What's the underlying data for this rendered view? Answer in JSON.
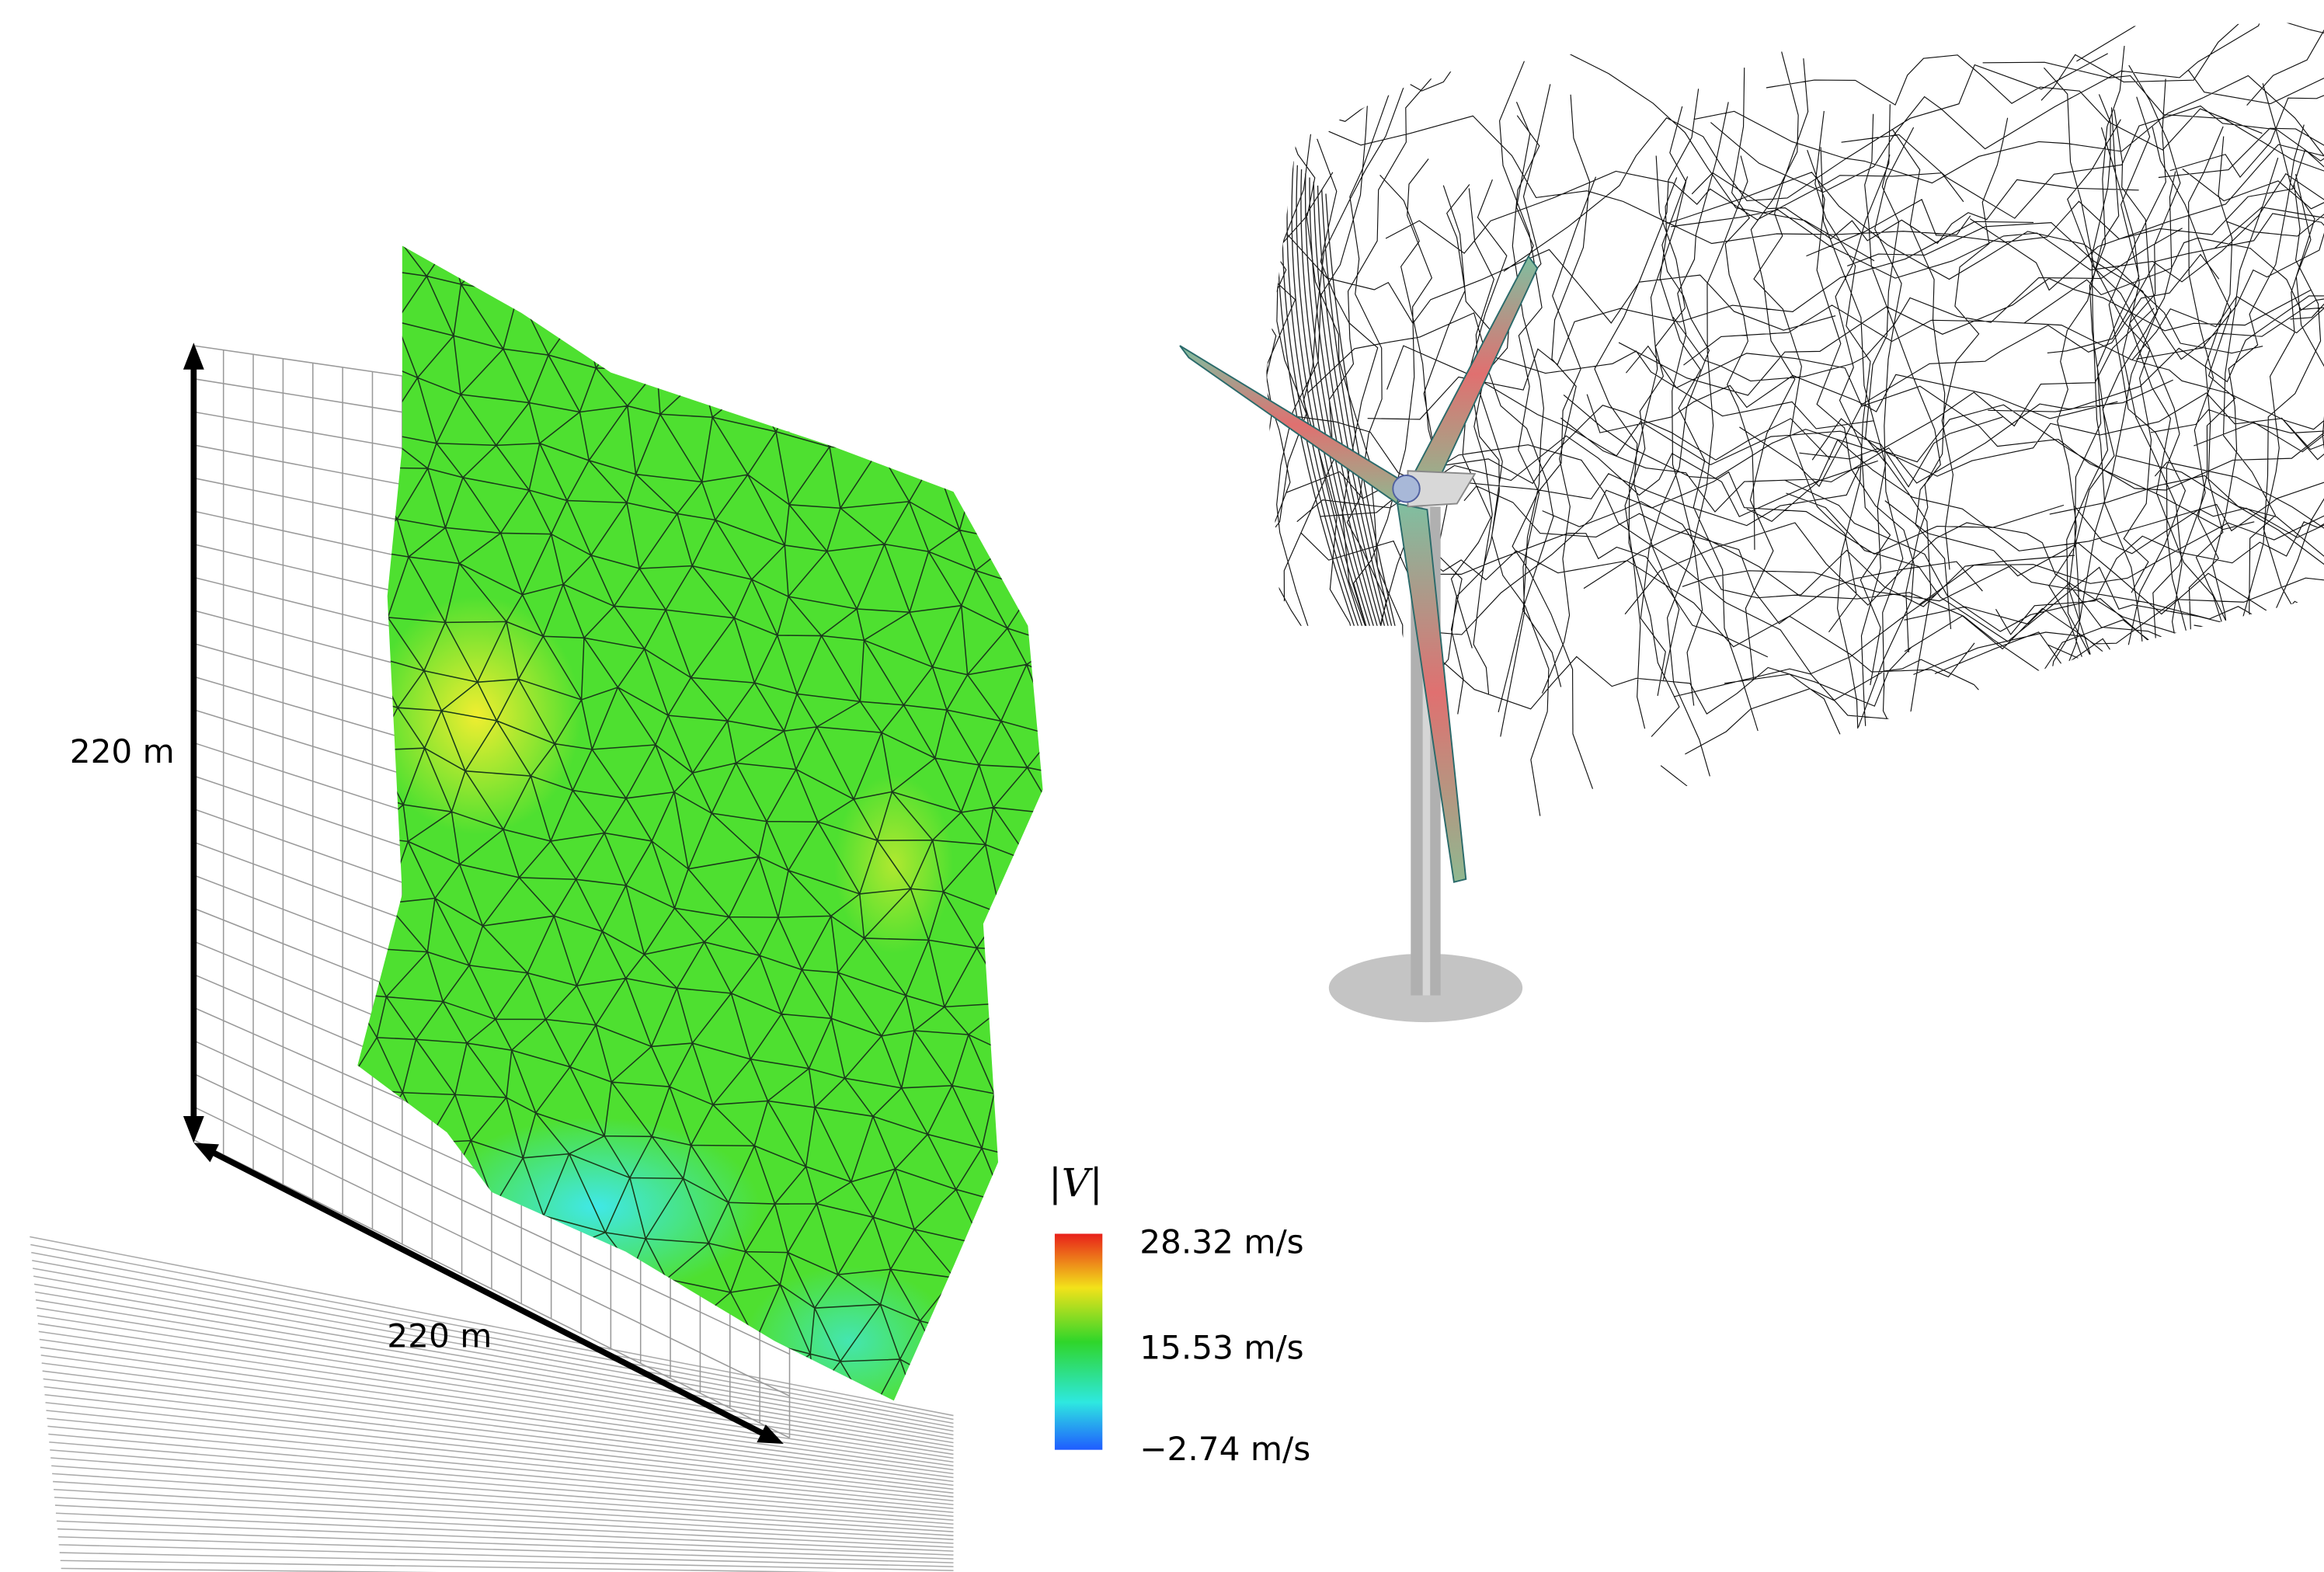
{
  "figure": {
    "height_label": "220 m",
    "width_label": "220 m",
    "colorbar": {
      "title": "|V|",
      "labels": [
        "28.32 m/s",
        "15.53 m/s",
        "−2.74 m/s"
      ]
    }
  }
}
